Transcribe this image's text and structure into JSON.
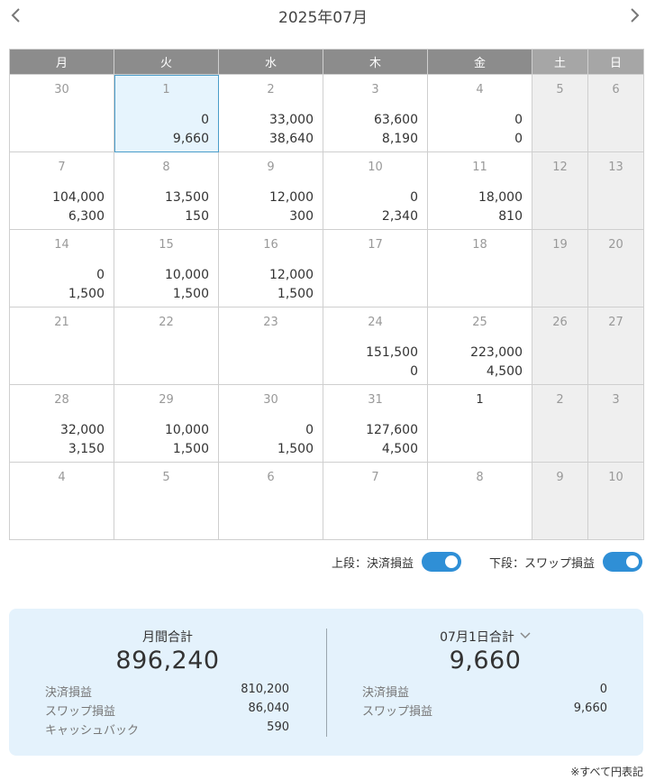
{
  "header": {
    "title": "2025年07月",
    "prev_icon": "chevron-left-icon",
    "next_icon": "chevron-right-icon"
  },
  "weekdays": [
    "月",
    "火",
    "水",
    "木",
    "金",
    "土",
    "日"
  ],
  "weeks": [
    [
      {
        "day": "30",
        "top": "",
        "bottom": ""
      },
      {
        "day": "1",
        "top": "0",
        "bottom": "9,660"
      },
      {
        "day": "2",
        "top": "33,000",
        "bottom": "38,640"
      },
      {
        "day": "3",
        "top": "63,600",
        "bottom": "8,190"
      },
      {
        "day": "4",
        "top": "0",
        "bottom": "0"
      },
      {
        "day": "5",
        "top": "",
        "bottom": ""
      },
      {
        "day": "6",
        "top": "",
        "bottom": ""
      }
    ],
    [
      {
        "day": "7",
        "top": "104,000",
        "bottom": "6,300"
      },
      {
        "day": "8",
        "top": "13,500",
        "bottom": "150"
      },
      {
        "day": "9",
        "top": "12,000",
        "bottom": "300"
      },
      {
        "day": "10",
        "top": "0",
        "bottom": "2,340"
      },
      {
        "day": "11",
        "top": "18,000",
        "bottom": "810"
      },
      {
        "day": "12",
        "top": "",
        "bottom": ""
      },
      {
        "day": "13",
        "top": "",
        "bottom": ""
      }
    ],
    [
      {
        "day": "14",
        "top": "0",
        "bottom": "1,500"
      },
      {
        "day": "15",
        "top": "10,000",
        "bottom": "1,500"
      },
      {
        "day": "16",
        "top": "12,000",
        "bottom": "1,500"
      },
      {
        "day": "17",
        "top": "",
        "bottom": ""
      },
      {
        "day": "18",
        "top": "",
        "bottom": ""
      },
      {
        "day": "19",
        "top": "",
        "bottom": ""
      },
      {
        "day": "20",
        "top": "",
        "bottom": ""
      }
    ],
    [
      {
        "day": "21",
        "top": "",
        "bottom": ""
      },
      {
        "day": "22",
        "top": "",
        "bottom": ""
      },
      {
        "day": "23",
        "top": "",
        "bottom": ""
      },
      {
        "day": "24",
        "top": "151,500",
        "bottom": "0"
      },
      {
        "day": "25",
        "top": "223,000",
        "bottom": "4,500"
      },
      {
        "day": "26",
        "top": "",
        "bottom": ""
      },
      {
        "day": "27",
        "top": "",
        "bottom": ""
      }
    ],
    [
      {
        "day": "28",
        "top": "32,000",
        "bottom": "3,150"
      },
      {
        "day": "29",
        "top": "10,000",
        "bottom": "1,500"
      },
      {
        "day": "30",
        "top": "0",
        "bottom": "1,500"
      },
      {
        "day": "31",
        "top": "127,600",
        "bottom": "4,500"
      },
      {
        "day": "1",
        "top": "",
        "bottom": ""
      },
      {
        "day": "2",
        "top": "",
        "bottom": ""
      },
      {
        "day": "3",
        "top": "",
        "bottom": ""
      }
    ],
    [
      {
        "day": "4",
        "top": "",
        "bottom": ""
      },
      {
        "day": "5",
        "top": "",
        "bottom": ""
      },
      {
        "day": "6",
        "top": "",
        "bottom": ""
      },
      {
        "day": "7",
        "top": "",
        "bottom": ""
      },
      {
        "day": "8",
        "top": "",
        "bottom": ""
      },
      {
        "day": "9",
        "top": "",
        "bottom": ""
      },
      {
        "day": "10",
        "top": "",
        "bottom": ""
      }
    ]
  ],
  "toggles": {
    "upper_label": "上段：決済損益",
    "upper_on": true,
    "lower_label": "下段：スワップ損益",
    "lower_on": true
  },
  "summary": {
    "monthly": {
      "title": "月間合計",
      "total": "896,240",
      "rows": [
        {
          "label": "決済損益",
          "value": "810,200"
        },
        {
          "label": "スワップ損益",
          "value": "86,040"
        },
        {
          "label": "キャッシュバック",
          "value": "590"
        }
      ]
    },
    "daily": {
      "title": "07月1日合計",
      "total": "9,660",
      "rows": [
        {
          "label": "決済損益",
          "value": "0"
        },
        {
          "label": "スワップ損益",
          "value": "9,660"
        }
      ]
    }
  },
  "footnote": "※すべて円表記",
  "colors": {
    "accent": "#2f8fd6",
    "header_bg": "#8c8c8c",
    "weekend_bg": "#efefef",
    "selected_bg": "#e6f4fd",
    "summary_bg": "#e4f2fc"
  }
}
